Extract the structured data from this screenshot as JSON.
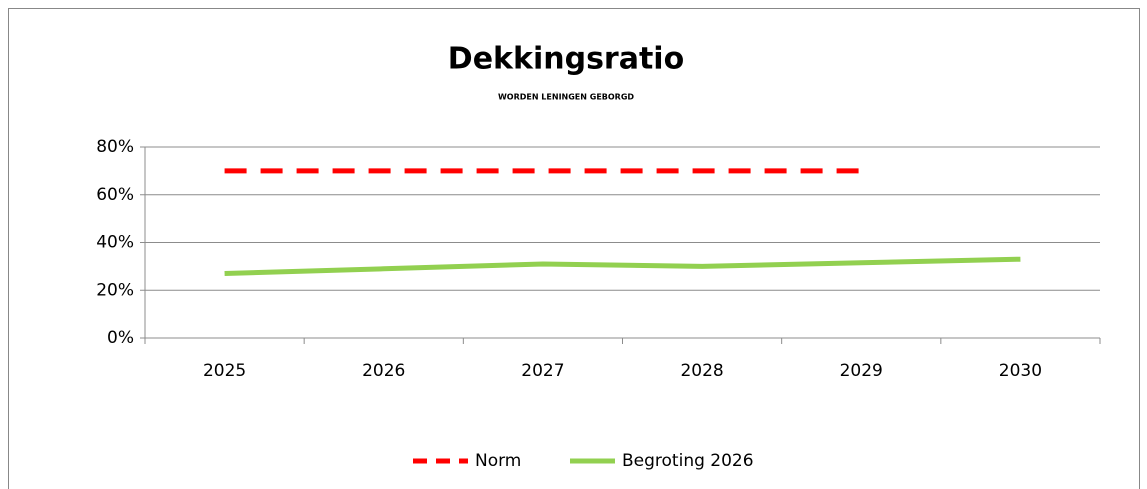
{
  "chart_data": {
    "type": "line",
    "title": "Dekkingsratio",
    "subtitle": "WORDEN LENINGEN GEBORGD",
    "categories": [
      "2025",
      "2026",
      "2027",
      "2028",
      "2029",
      "2030"
    ],
    "series": [
      {
        "name": "Norm",
        "color": "#ff0000",
        "dash": true,
        "values": [
          70,
          70,
          70,
          70,
          70,
          null
        ]
      },
      {
        "name": "Begroting 2026",
        "color": "#92d050",
        "dash": false,
        "values": [
          27,
          29,
          31,
          30,
          31.5,
          33
        ]
      }
    ],
    "ylim": [
      0,
      80
    ],
    "yticks": [
      {
        "value": 0,
        "label": "0%"
      },
      {
        "value": 20,
        "label": "20%"
      },
      {
        "value": 40,
        "label": "40%"
      },
      {
        "value": 60,
        "label": "60%"
      },
      {
        "value": 80,
        "label": "80%"
      }
    ],
    "grid": true,
    "legend": "bottom"
  }
}
